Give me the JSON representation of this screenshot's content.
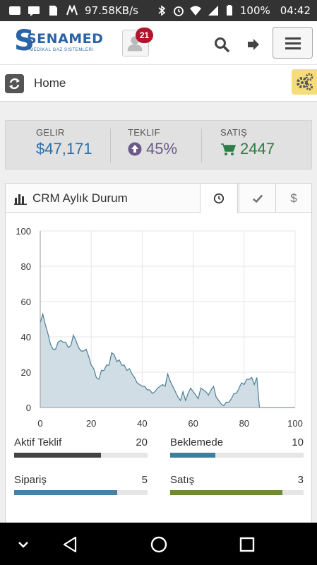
{
  "status_bar": {
    "speed": "97.58KB/s",
    "battery": "100%",
    "time": "04:42"
  },
  "header": {
    "logo_name": "SENAMED",
    "logo_subtitle": "MEDİKAL GAZ SİSTEMLERİ",
    "notification_count": "21"
  },
  "breadcrumb": {
    "title": "Home"
  },
  "stats": [
    {
      "label": "GELIR",
      "value": "$47,171",
      "color": "#2a6fa8"
    },
    {
      "label": "TEKLIF",
      "value": "45%",
      "color": "#6b5a87"
    },
    {
      "label": "SATIŞ",
      "value": "2447",
      "color": "#2e7d46"
    }
  ],
  "panel": {
    "title": "CRM Aylık Durum",
    "tabs": [
      {
        "icon": "clock-icon"
      },
      {
        "icon": "check-icon"
      },
      {
        "icon": "dollar-icon",
        "label": "$"
      }
    ]
  },
  "chart_data": {
    "type": "area",
    "x": [
      0,
      1,
      2,
      3,
      4,
      5,
      6,
      7,
      8,
      9,
      10,
      11,
      12,
      13,
      14,
      15,
      16,
      17,
      18,
      19,
      20,
      21,
      22,
      23,
      24,
      25,
      26,
      27,
      28,
      29,
      30,
      31,
      32,
      33,
      34,
      35,
      36,
      37,
      38,
      39,
      40,
      41,
      42,
      43,
      44,
      45,
      46,
      47,
      48,
      49,
      50,
      51,
      52,
      53,
      54,
      55,
      56,
      57,
      58,
      59,
      60,
      61,
      62,
      63,
      64,
      65,
      66,
      67,
      68,
      69,
      70,
      71,
      72,
      73,
      74,
      75,
      76,
      77,
      78,
      79,
      80,
      81,
      82,
      83,
      84,
      85,
      86,
      87,
      88,
      89,
      90,
      91,
      92,
      93,
      94,
      95,
      96,
      97,
      98,
      99,
      100
    ],
    "y": [
      48,
      53,
      47,
      42,
      36,
      33,
      33,
      37,
      38,
      37,
      37,
      34,
      35,
      41,
      38,
      34,
      32,
      32,
      33,
      29,
      24,
      22,
      17,
      16,
      21,
      21,
      24,
      24,
      31,
      30,
      26,
      27,
      24,
      24,
      21,
      22,
      19,
      17,
      14,
      13,
      12,
      12,
      10,
      10,
      8,
      9,
      11,
      12,
      13,
      12,
      19,
      15,
      12,
      9,
      6,
      4,
      9,
      4,
      8,
      11,
      9,
      7,
      5,
      11,
      10,
      9,
      7,
      10,
      12,
      6,
      4,
      2,
      1,
      3,
      3,
      5,
      8,
      8,
      11,
      14,
      13,
      16,
      16,
      17,
      13,
      17,
      0,
      0,
      0,
      0,
      0,
      0,
      0,
      0,
      0,
      0,
      0,
      0,
      0,
      0,
      0
    ],
    "xlim": [
      0,
      100
    ],
    "ylim": [
      0,
      100
    ],
    "xticks": [
      "0",
      "20",
      "40",
      "60",
      "80",
      "100"
    ],
    "yticks": [
      "0",
      "20",
      "40",
      "60",
      "80",
      "100"
    ],
    "grid": true,
    "fill_color": "#d0dde5",
    "line_color": "#4a7f96"
  },
  "progress": [
    {
      "label": "Aktif Teklif",
      "value": "20",
      "fraction": 0.65,
      "color": "#444444"
    },
    {
      "label": "Beklemede",
      "value": "10",
      "fraction": 0.34,
      "color": "#3f7e9c"
    },
    {
      "label": "Sipariş",
      "value": "5",
      "fraction": 0.77,
      "color": "#4880a3"
    },
    {
      "label": "Satış",
      "value": "3",
      "fraction": 0.84,
      "color": "#6e8a37"
    }
  ]
}
